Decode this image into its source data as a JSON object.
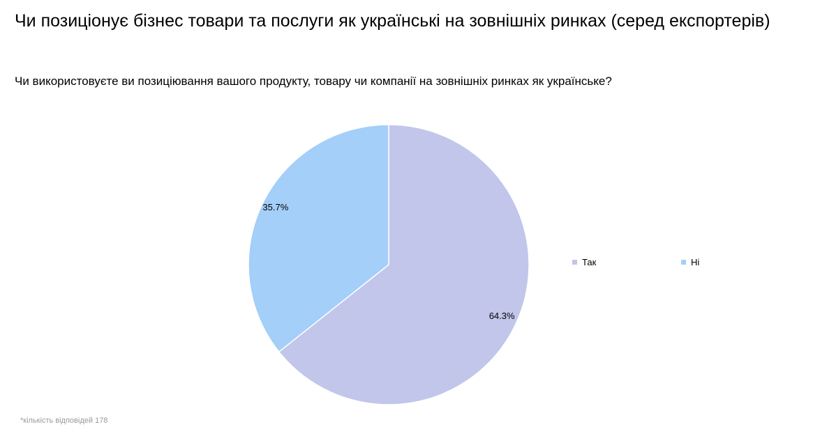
{
  "chart_data": {
    "type": "pie",
    "title": "Чи позиціонує бізнес товари та послуги як українські на зовнішніх ринках (серед експортерів)",
    "subtitle": "Чи використовуєте ви позиціювання вашого продукту, товару чи компанії на зовнішніх ринках як українське?",
    "categories": [
      "Так",
      "Ні"
    ],
    "values": [
      64.3,
      35.7
    ],
    "labels": [
      "64.3%",
      "35.7%"
    ],
    "colors": [
      "#c1c6ea",
      "#a3cff9"
    ],
    "legend_placement": "right",
    "note": "*кількість відповідей 178"
  }
}
